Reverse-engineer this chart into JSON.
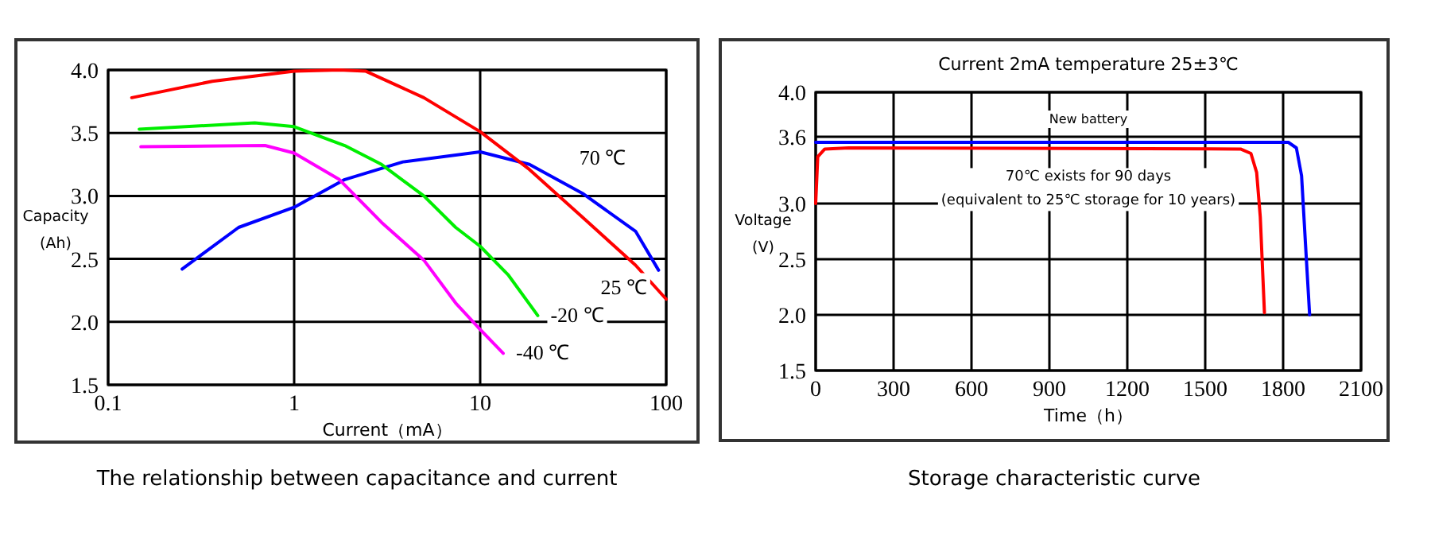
{
  "chart_data": [
    {
      "type": "line",
      "title": "The relationship between capacitance and current",
      "xlabel": "Current（mA）",
      "ylabel": "Capacity\n(Ah)",
      "log": "x",
      "grid": true,
      "xlim": [
        0.1,
        100
      ],
      "xticks": [
        0.1,
        1,
        10,
        100
      ],
      "ylim": [
        1.5,
        4.0
      ],
      "yticks": [
        1.5,
        {
          "value": 2,
          "label": "2.0"
        },
        2.5,
        {
          "value": 3,
          "label": "3.0"
        },
        3.5,
        {
          "value": 4,
          "label": "4.0"
        }
      ],
      "series": [
        {
          "name": "70 ℃",
          "color": "#0000ff",
          "x": [
            0.25,
            0.503,
            1,
            1.87,
            3.84,
            10,
            18.4,
            35.5,
            68.4,
            91
          ],
          "values": [
            2.42,
            2.75,
            2.91,
            3.13,
            3.27,
            3.35,
            3.25,
            3.02,
            2.72,
            2.41
          ]
        },
        {
          "name": "25 ℃",
          "color": "#ff0000",
          "x": [
            0.134,
            0.363,
            1,
            1.75,
            2.43,
            4.98,
            10,
            18.4,
            35.5,
            68.4,
            100
          ],
          "values": [
            3.78,
            3.91,
            3.99,
            4.0,
            3.99,
            3.78,
            3.51,
            3.21,
            2.83,
            2.45,
            2.18
          ]
        },
        {
          "name": "-20 ℃",
          "color": "#00ee00",
          "x": [
            0.147,
            0.614,
            1,
            1.87,
            2.95,
            4.98,
            7.38,
            10,
            14.2,
            20.4
          ],
          "values": [
            3.53,
            3.58,
            3.55,
            3.4,
            3.25,
            3.0,
            2.75,
            2.6,
            2.37,
            2.05
          ]
        },
        {
          "name": "-40 ℃",
          "color": "#ff00ff",
          "x": [
            0.15,
            0.698,
            1,
            1.75,
            2.95,
            4.98,
            7.38,
            10,
            13.3
          ],
          "values": [
            3.39,
            3.4,
            3.34,
            3.13,
            2.79,
            2.49,
            2.15,
            1.94,
            1.75
          ]
        }
      ]
    },
    {
      "type": "line",
      "title": "Storage characteristic curve",
      "subtitle": "Current 2mA  temperature 25±3℃",
      "xlabel": "Time（h）",
      "ylabel": "Voltage\n(V)",
      "grid": true,
      "xlim": [
        0,
        2100
      ],
      "xticks": [
        0,
        300,
        600,
        900,
        1200,
        1500,
        1800,
        2100
      ],
      "ylim": [
        1.5,
        4.0
      ],
      "yticks": [
        1.5,
        {
          "value": 2,
          "label": "2.0"
        },
        2.5,
        {
          "value": 3,
          "label": "3.0"
        },
        3.6,
        {
          "value": 4,
          "label": "4.0"
        }
      ],
      "series": [
        {
          "name": "New battery",
          "color": "#0000ff",
          "x": [
            0,
            1820,
            1851,
            1871,
            1886,
            1902
          ],
          "values": [
            3.55,
            3.55,
            3.5,
            3.25,
            2.64,
            2.0
          ]
        },
        {
          "name": "70℃ exists for 90 days\n(equivalent to 25℃ storage for 10 years)",
          "color": "#ff0000",
          "x": [
            0,
            8,
            35,
            127,
            1636,
            1676,
            1698,
            1712,
            1728
          ],
          "values": [
            3.0,
            3.42,
            3.49,
            3.5,
            3.49,
            3.45,
            3.28,
            2.88,
            2.02
          ]
        }
      ]
    }
  ]
}
